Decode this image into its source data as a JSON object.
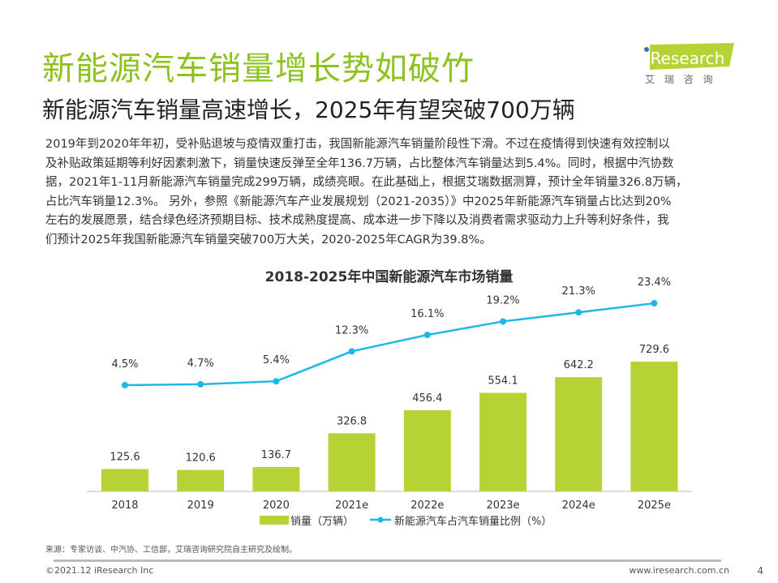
{
  "header": {
    "title": "新能源汽车销量增长势如破竹",
    "subtitle": "新能源汽车销量高速增长，2025年有望突破700万辆"
  },
  "logo": {
    "brand": "iResearch",
    "cn": "艾 瑞 咨 询",
    "accent": "#b5d334",
    "dot": "#2e75b6"
  },
  "body_lines": [
    "2019年到2020年年初，受补贴退坡与疫情双重打击，我国新能源汽车销量阶段性下滑。不过在疫情得到快速有效控制以",
    "及补贴政策延期等利好因素刺激下，销量快速反弹至全年136.7万辆，占比整体汽车销量达到5.4%。同时，根据中汽协数",
    "据，2021年1-11月新能源汽车销量完成299万辆，成绩亮眼。在此基础上，根据艾瑞数据测算，预计全年销量326.8万辆，",
    "占比汽车销量12.3%。 另外，参照《新能源汽车产业发展规划（2021-2035）》中2025年新能源汽车销量占比达到20%",
    "左右的发展愿景，结合绿色经济预期目标、技术成熟度提高、成本进一步下降以及消费者需求驱动力上升等利好条件，我",
    "们预计2025年我国新能源汽车销量突破700万大关，2020-2025年CAGR为39.8%。"
  ],
  "chart_data": {
    "type": "bar+line",
    "title": "2018-2025年中国新能源汽车市场销量",
    "categories": [
      "2018",
      "2019",
      "2020",
      "2021e",
      "2022e",
      "2023e",
      "2024e",
      "2025e"
    ],
    "series": [
      {
        "name": "销量（万辆）",
        "type": "bar",
        "color": "#b5d334",
        "values": [
          125.6,
          120.6,
          136.7,
          326.8,
          456.4,
          554.1,
          642.2,
          729.6
        ],
        "labels": [
          "125.6",
          "120.6",
          "136.7",
          "326.8",
          "456.4",
          "554.1",
          "642.2",
          "729.6"
        ]
      },
      {
        "name": "新能源汽车占汽车销量比例（%）",
        "type": "line",
        "color": "#1fb6e8",
        "values": [
          4.5,
          4.7,
          5.4,
          12.3,
          16.1,
          19.2,
          21.3,
          23.4
        ],
        "labels": [
          "4.5%",
          "4.7%",
          "5.4%",
          "12.3%",
          "16.1%",
          "19.2%",
          "21.3%",
          "23.4%"
        ]
      }
    ],
    "legend": "bottom",
    "grid": false
  },
  "footer": {
    "source": "来源：专家访谈、中汽协、工信部，艾瑞咨询研究院自主研究及绘制。",
    "copyright": "©2021.12 iResearch Inc",
    "url": "www.iresearch.com.cn",
    "page": "4"
  }
}
